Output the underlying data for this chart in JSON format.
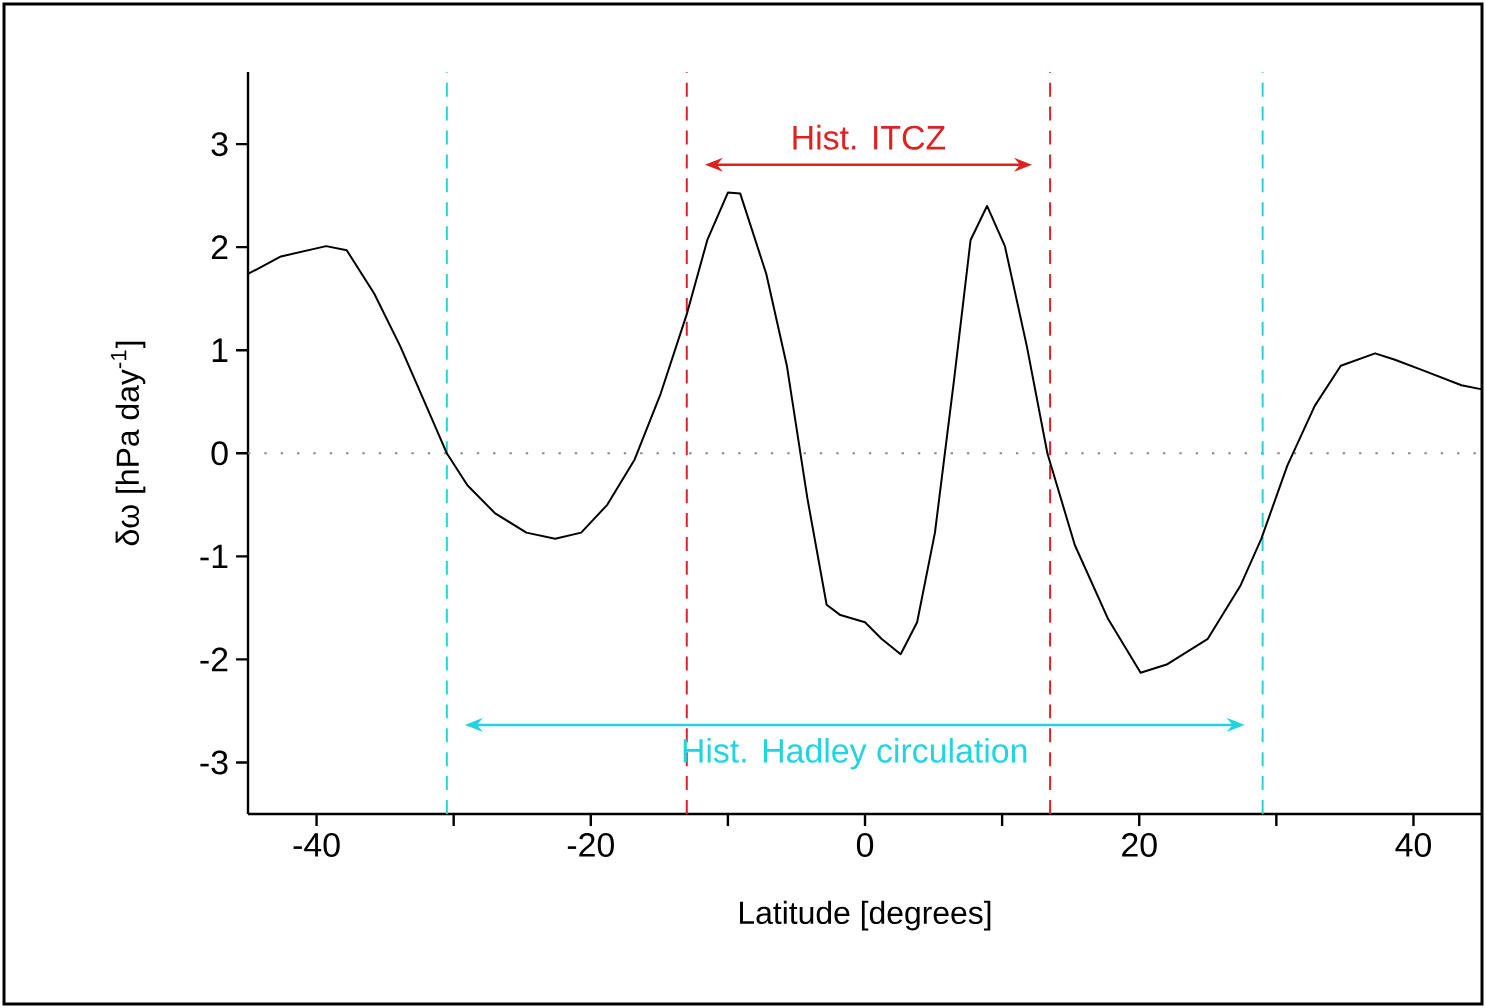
{
  "chart_data": {
    "type": "line",
    "xlabel": "Latitude [degrees]",
    "ylabel": "δω [hPa day$^{-1}$]",
    "xlim": [
      -45,
      45
    ],
    "ylim": [
      -3.5,
      3.7
    ],
    "xticks": [
      -40,
      {
        "value": -30,
        "label": null
      },
      -20,
      {
        "value": -10,
        "label": null
      },
      0,
      {
        "value": 10,
        "label": null
      },
      20,
      {
        "value": 30,
        "label": null
      },
      40
    ],
    "yticks": [
      -3,
      -2,
      -1,
      0,
      1,
      2,
      3
    ],
    "series": [
      {
        "color": "#000000",
        "x": [
          -45,
          -42.6,
          -39.3,
          -37.8,
          -35.8,
          -33.9,
          -32,
          -30.5,
          -29,
          -27,
          -24.7,
          -22.6,
          -20.7,
          -18.8,
          -16.8,
          -14.9,
          -13,
          -11.5,
          -10,
          -9.1,
          -7.2,
          -5.7,
          -4.2,
          -2.8,
          -1.8,
          0,
          1.2,
          2.6,
          3.8,
          5.1,
          6.5,
          7.7,
          8.9,
          10.2,
          11.8,
          13.3,
          15.3,
          17.7,
          20.1,
          22,
          25,
          27.4,
          28.9,
          30.8,
          32.8,
          34.7,
          37.2,
          38.6,
          40.6,
          43.5,
          45
        ],
        "values": [
          1.74,
          1.91,
          2.01,
          1.97,
          1.55,
          1.04,
          0.46,
          0,
          -0.31,
          -0.58,
          -0.77,
          -0.83,
          -0.77,
          -0.5,
          -0.06,
          0.58,
          1.35,
          2.07,
          2.53,
          2.52,
          1.74,
          0.85,
          -0.44,
          -1.47,
          -1.57,
          -1.64,
          -1.8,
          -1.95,
          -1.64,
          -0.77,
          0.72,
          2.07,
          2.4,
          2.01,
          1.04,
          0,
          -0.89,
          -1.6,
          -2.13,
          -2.05,
          -1.8,
          -1.28,
          -0.83,
          -0.12,
          0.46,
          0.85,
          0.97,
          0.91,
          0.81,
          0.66,
          0.62
        ]
      }
    ],
    "ref_lines": [
      {
        "axis": "y",
        "value": 0,
        "color": "#888888",
        "line_style": "dotted"
      },
      {
        "axis": "x",
        "value": -13,
        "color": "#dd2222",
        "line_style": "dashed"
      },
      {
        "axis": "x",
        "value": 13.5,
        "color": "#dd2222",
        "line_style": "dashed"
      },
      {
        "axis": "x",
        "value": -30.5,
        "color": "#22d3e0",
        "line_style": "dashed"
      },
      {
        "axis": "x",
        "value": 29,
        "color": "#22d3e0",
        "line_style": "dashed"
      }
    ],
    "annotations": [
      "Hist. ITCZ",
      "Hist. Hadley circulation"
    ],
    "line_style": "solid",
    "marker": "none",
    "grid": false
  }
}
